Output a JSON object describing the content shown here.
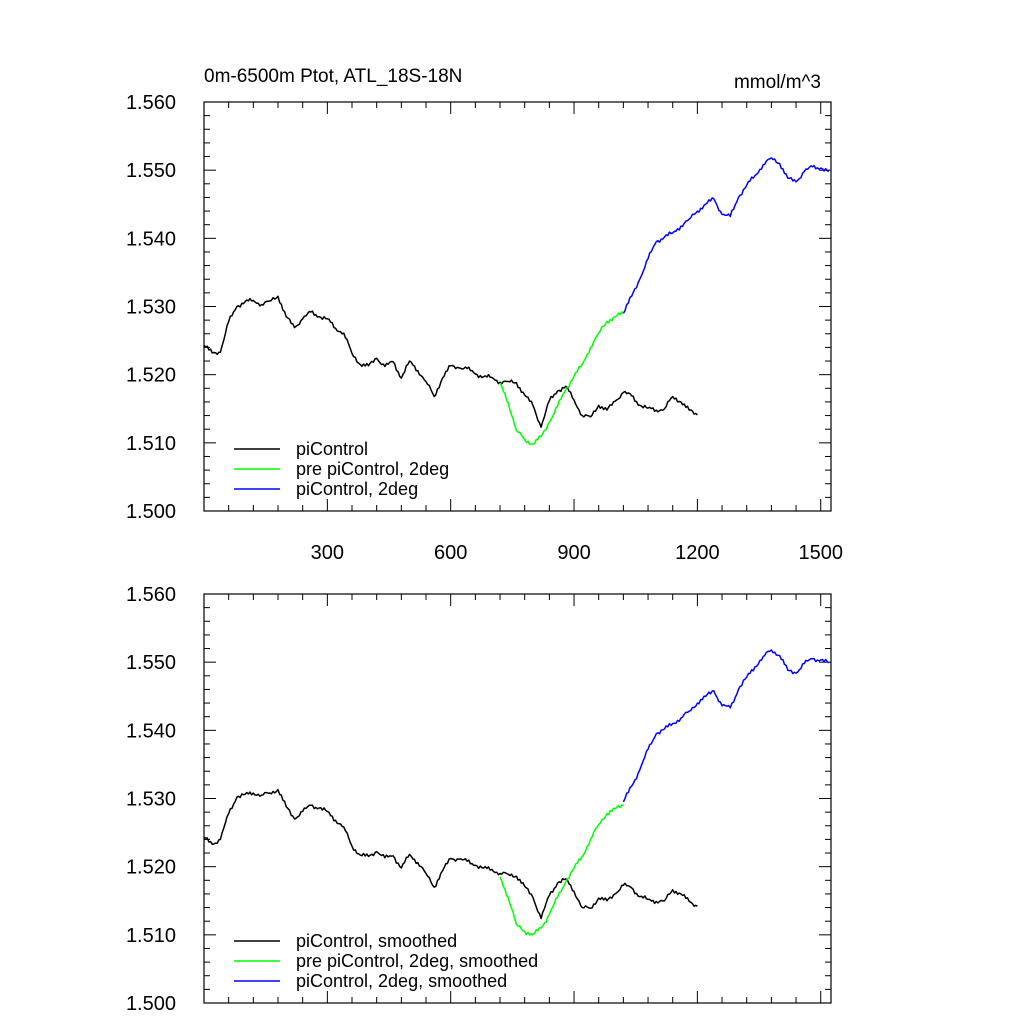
{
  "chart_data": [
    {
      "type": "line",
      "title": "0m-6500m Ptot, ATL_18S-18N",
      "units": "mmol/m^3",
      "xlim": [
        0,
        1525
      ],
      "ylim": [
        1.5,
        1.56
      ],
      "xticks": [
        300,
        600,
        900,
        1200,
        1500
      ],
      "xtick_labels": [
        "300",
        "600",
        "900",
        "1200",
        "1500"
      ],
      "yticks": [
        1.5,
        1.51,
        1.52,
        1.53,
        1.54,
        1.55,
        1.56
      ],
      "ytick_labels": [
        "1.500",
        "1.510",
        "1.520",
        "1.530",
        "1.540",
        "1.550",
        "1.560"
      ],
      "grid": false,
      "legend_position": "bottom-left",
      "series": [
        {
          "name": "piControl",
          "color": "#000000",
          "x": [
            0,
            20,
            40,
            60,
            80,
            100,
            120,
            140,
            160,
            180,
            200,
            220,
            240,
            260,
            280,
            300,
            320,
            340,
            360,
            380,
            400,
            420,
            440,
            460,
            480,
            500,
            520,
            540,
            560,
            580,
            600,
            620,
            640,
            660,
            680,
            700,
            720,
            740,
            760,
            780,
            800,
            820,
            840,
            860,
            880,
            900,
            920,
            940,
            960,
            980,
            1000,
            1020,
            1040,
            1060,
            1080,
            1100,
            1120,
            1140,
            1160,
            1180,
            1200
          ],
          "y": [
            1.5243,
            1.5232,
            1.5233,
            1.5278,
            1.53,
            1.5307,
            1.5309,
            1.5303,
            1.5308,
            1.5315,
            1.5285,
            1.5269,
            1.5282,
            1.5292,
            1.5285,
            1.5282,
            1.5268,
            1.5261,
            1.5231,
            1.5215,
            1.5213,
            1.5224,
            1.5212,
            1.5219,
            1.5195,
            1.522,
            1.5206,
            1.519,
            1.5168,
            1.5195,
            1.5213,
            1.521,
            1.5209,
            1.5201,
            1.5197,
            1.5196,
            1.5189,
            1.519,
            1.5188,
            1.517,
            1.5155,
            1.5123,
            1.5162,
            1.5176,
            1.5183,
            1.5163,
            1.514,
            1.5138,
            1.5155,
            1.5148,
            1.5161,
            1.5174,
            1.5169,
            1.5155,
            1.5151,
            1.5148,
            1.515,
            1.5168,
            1.516,
            1.5148,
            1.5141
          ]
        },
        {
          "name": "pre piControl, 2deg",
          "color": "#00ff00",
          "x": [
            720,
            740,
            760,
            780,
            800,
            820,
            840,
            860,
            880,
            900,
            920,
            940,
            960,
            980,
            1000,
            1020
          ],
          "y": [
            1.5188,
            1.5159,
            1.5118,
            1.5105,
            1.5098,
            1.5109,
            1.513,
            1.5154,
            1.5178,
            1.5198,
            1.5215,
            1.524,
            1.5261,
            1.5278,
            1.5285,
            1.529
          ]
        },
        {
          "name": "piControl, 2deg",
          "color": "#0000ff",
          "x": [
            1020,
            1040,
            1060,
            1080,
            1100,
            1120,
            1140,
            1160,
            1180,
            1200,
            1220,
            1240,
            1260,
            1280,
            1300,
            1320,
            1340,
            1360,
            1380,
            1400,
            1420,
            1440,
            1460,
            1480,
            1500,
            1520
          ],
          "y": [
            1.529,
            1.5315,
            1.534,
            1.537,
            1.5395,
            1.5402,
            1.5408,
            1.5418,
            1.5428,
            1.544,
            1.545,
            1.5458,
            1.5435,
            1.5432,
            1.546,
            1.5478,
            1.5492,
            1.5508,
            1.5518,
            1.551,
            1.5488,
            1.5483,
            1.5498,
            1.5505,
            1.5503,
            1.5498
          ]
        }
      ]
    },
    {
      "type": "line",
      "title": "",
      "units": "",
      "xlim": [
        0,
        1525
      ],
      "ylim": [
        1.5,
        1.56
      ],
      "xticks": [
        300,
        600,
        900,
        1200,
        1500
      ],
      "xtick_labels": [],
      "yticks": [
        1.5,
        1.51,
        1.52,
        1.53,
        1.54,
        1.55,
        1.56
      ],
      "ytick_labels": [
        "1.500",
        "1.510",
        "1.520",
        "1.530",
        "1.540",
        "1.550",
        "1.560"
      ],
      "grid": false,
      "legend_position": "bottom-left",
      "series": [
        {
          "name": "piControl, smoothed",
          "color": "#000000",
          "x": [
            0,
            20,
            40,
            60,
            80,
            100,
            120,
            140,
            160,
            180,
            200,
            220,
            240,
            260,
            280,
            300,
            320,
            340,
            360,
            380,
            400,
            420,
            440,
            460,
            480,
            500,
            520,
            540,
            560,
            580,
            600,
            620,
            640,
            660,
            680,
            700,
            720,
            740,
            760,
            780,
            800,
            820,
            840,
            860,
            880,
            900,
            920,
            940,
            960,
            980,
            1000,
            1020,
            1040,
            1060,
            1080,
            1100,
            1120,
            1140,
            1160,
            1180,
            1200
          ],
          "y": [
            1.5243,
            1.5233,
            1.524,
            1.5278,
            1.5302,
            1.5306,
            1.5308,
            1.5305,
            1.5308,
            1.5313,
            1.5288,
            1.527,
            1.5281,
            1.529,
            1.5286,
            1.5281,
            1.5268,
            1.5258,
            1.523,
            1.5217,
            1.5215,
            1.5222,
            1.5213,
            1.5216,
            1.5198,
            1.5218,
            1.5206,
            1.519,
            1.517,
            1.5194,
            1.5212,
            1.5211,
            1.5208,
            1.5202,
            1.5198,
            1.5196,
            1.519,
            1.5189,
            1.5186,
            1.5171,
            1.5155,
            1.5124,
            1.5158,
            1.5176,
            1.5182,
            1.5164,
            1.514,
            1.5139,
            1.5154,
            1.515,
            1.516,
            1.5173,
            1.5169,
            1.5156,
            1.5152,
            1.5149,
            1.515,
            1.5166,
            1.516,
            1.5149,
            1.5142
          ]
        },
        {
          "name": "pre piControl, 2deg, smoothed",
          "color": "#00ff00",
          "x": [
            720,
            740,
            760,
            780,
            800,
            820,
            840,
            860,
            880,
            900,
            920,
            940,
            960,
            980,
            1000,
            1020
          ],
          "y": [
            1.5185,
            1.5155,
            1.5115,
            1.5105,
            1.51,
            1.511,
            1.513,
            1.5155,
            1.5178,
            1.5198,
            1.5215,
            1.524,
            1.5262,
            1.5278,
            1.5285,
            1.529
          ]
        },
        {
          "name": "piControl, 2deg, smoothed",
          "color": "#0000ff",
          "x": [
            1020,
            1040,
            1060,
            1080,
            1100,
            1120,
            1140,
            1160,
            1180,
            1200,
            1220,
            1240,
            1260,
            1280,
            1300,
            1320,
            1340,
            1360,
            1380,
            1400,
            1420,
            1440,
            1460,
            1480,
            1500,
            1520
          ],
          "y": [
            1.5295,
            1.5318,
            1.5342,
            1.5372,
            1.5395,
            1.5402,
            1.541,
            1.5418,
            1.5428,
            1.544,
            1.545,
            1.5458,
            1.5436,
            1.5433,
            1.546,
            1.5478,
            1.5493,
            1.5508,
            1.5518,
            1.551,
            1.5488,
            1.5484,
            1.5498,
            1.5505,
            1.5503,
            1.5499
          ]
        }
      ]
    }
  ]
}
